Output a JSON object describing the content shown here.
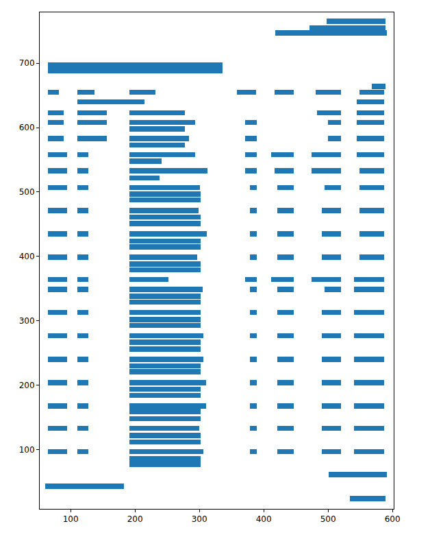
{
  "chart_data": {
    "type": "broken_barh",
    "orientation": "horizontal",
    "color": "#1f77b4",
    "grid": false,
    "xlim": [
      52,
      602
    ],
    "xticks": [
      100,
      200,
      300,
      400,
      500,
      600
    ],
    "ylim": [
      8,
      779
    ],
    "yticks": [
      100,
      200,
      300,
      400,
      500,
      600,
      700
    ],
    "rows": [
      {
        "y": 765,
        "height": 8,
        "spans": [
          [
            498,
            91
          ]
        ]
      },
      {
        "y": 755,
        "height": 8,
        "spans": [
          [
            471,
            118
          ]
        ]
      },
      {
        "y": 747,
        "height": 8,
        "spans": [
          [
            418,
            173
          ]
        ]
      },
      {
        "y": 693,
        "height": 17,
        "spans": [
          [
            65,
            271
          ]
        ]
      },
      {
        "y": 664,
        "height": 8,
        "spans": [
          [
            568,
            21
          ]
        ]
      },
      {
        "y": 655,
        "height": 8,
        "spans": [
          [
            65,
            17
          ],
          [
            110,
            27
          ],
          [
            191,
            41
          ],
          [
            358,
            30
          ],
          [
            417,
            30
          ],
          [
            481,
            39
          ],
          [
            549,
            38
          ]
        ]
      },
      {
        "y": 640,
        "height": 8,
        "spans": [
          [
            110,
            105
          ],
          [
            545,
            42
          ]
        ]
      },
      {
        "y": 623,
        "height": 8,
        "spans": [
          [
            65,
            24
          ],
          [
            110,
            46
          ],
          [
            191,
            86
          ],
          [
            483,
            37
          ],
          [
            545,
            42
          ]
        ]
      },
      {
        "y": 608,
        "height": 8,
        "spans": [
          [
            65,
            24
          ],
          [
            110,
            46
          ],
          [
            191,
            103
          ],
          [
            371,
            18
          ],
          [
            500,
            20
          ],
          [
            545,
            42
          ]
        ]
      },
      {
        "y": 598,
        "height": 8,
        "spans": [
          [
            191,
            86
          ]
        ]
      },
      {
        "y": 583,
        "height": 8,
        "spans": [
          [
            65,
            24
          ],
          [
            110,
            46
          ],
          [
            191,
            93
          ],
          [
            371,
            18
          ],
          [
            500,
            20
          ],
          [
            545,
            42
          ]
        ]
      },
      {
        "y": 573,
        "height": 8,
        "spans": [
          [
            191,
            86
          ]
        ]
      },
      {
        "y": 558,
        "height": 8,
        "spans": [
          [
            65,
            30
          ],
          [
            110,
            18
          ],
          [
            191,
            103
          ],
          [
            371,
            18
          ],
          [
            412,
            35
          ],
          [
            474,
            46
          ],
          [
            545,
            42
          ]
        ]
      },
      {
        "y": 548,
        "height": 8,
        "spans": [
          [
            191,
            50
          ]
        ]
      },
      {
        "y": 533,
        "height": 8,
        "spans": [
          [
            65,
            30
          ],
          [
            110,
            18
          ],
          [
            191,
            122
          ],
          [
            371,
            18
          ],
          [
            417,
            30
          ],
          [
            474,
            46
          ],
          [
            549,
            38
          ]
        ]
      },
      {
        "y": 522,
        "height": 8,
        "spans": [
          [
            191,
            47
          ]
        ]
      },
      {
        "y": 507,
        "height": 8,
        "spans": [
          [
            65,
            30
          ],
          [
            110,
            18
          ],
          [
            191,
            110
          ],
          [
            379,
            10
          ],
          [
            421,
            26
          ],
          [
            495,
            25
          ],
          [
            549,
            38
          ]
        ]
      },
      {
        "y": 497,
        "height": 8,
        "spans": [
          [
            191,
            111
          ]
        ]
      },
      {
        "y": 488,
        "height": 8,
        "spans": [
          [
            191,
            111
          ]
        ]
      },
      {
        "y": 471,
        "height": 8,
        "spans": [
          [
            65,
            30
          ],
          [
            110,
            18
          ],
          [
            191,
            108
          ],
          [
            379,
            10
          ],
          [
            421,
            26
          ],
          [
            490,
            30
          ],
          [
            549,
            38
          ]
        ]
      },
      {
        "y": 461,
        "height": 8,
        "spans": [
          [
            191,
            111
          ]
        ]
      },
      {
        "y": 451,
        "height": 8,
        "spans": [
          [
            191,
            111
          ]
        ]
      },
      {
        "y": 435,
        "height": 8,
        "spans": [
          [
            65,
            30
          ],
          [
            110,
            18
          ],
          [
            191,
            121
          ],
          [
            379,
            10
          ],
          [
            421,
            26
          ],
          [
            490,
            30
          ],
          [
            549,
            38
          ]
        ]
      },
      {
        "y": 424,
        "height": 8,
        "spans": [
          [
            191,
            111
          ]
        ]
      },
      {
        "y": 415,
        "height": 8,
        "spans": [
          [
            191,
            111
          ]
        ]
      },
      {
        "y": 399,
        "height": 8,
        "spans": [
          [
            65,
            30
          ],
          [
            110,
            18
          ],
          [
            191,
            106
          ],
          [
            379,
            10
          ],
          [
            421,
            26
          ],
          [
            490,
            30
          ],
          [
            549,
            38
          ]
        ]
      },
      {
        "y": 388,
        "height": 8,
        "spans": [
          [
            191,
            111
          ]
        ]
      },
      {
        "y": 379,
        "height": 8,
        "spans": [
          [
            191,
            111
          ]
        ]
      },
      {
        "y": 364,
        "height": 8,
        "spans": [
          [
            65,
            30
          ],
          [
            110,
            18
          ],
          [
            191,
            61
          ],
          [
            371,
            18
          ],
          [
            412,
            35
          ],
          [
            474,
            46
          ],
          [
            540,
            47
          ]
        ]
      },
      {
        "y": 349,
        "height": 8,
        "spans": [
          [
            65,
            30
          ],
          [
            110,
            18
          ],
          [
            191,
            114
          ],
          [
            379,
            10
          ],
          [
            421,
            26
          ],
          [
            495,
            25
          ],
          [
            540,
            47
          ]
        ]
      },
      {
        "y": 338,
        "height": 8,
        "spans": [
          [
            191,
            111
          ]
        ]
      },
      {
        "y": 329,
        "height": 8,
        "spans": [
          [
            191,
            111
          ]
        ]
      },
      {
        "y": 313,
        "height": 8,
        "spans": [
          [
            65,
            30
          ],
          [
            110,
            18
          ],
          [
            191,
            111
          ],
          [
            379,
            10
          ],
          [
            421,
            26
          ],
          [
            490,
            30
          ],
          [
            540,
            47
          ]
        ]
      },
      {
        "y": 302,
        "height": 8,
        "spans": [
          [
            191,
            111
          ]
        ]
      },
      {
        "y": 293,
        "height": 8,
        "spans": [
          [
            191,
            111
          ]
        ]
      },
      {
        "y": 277,
        "height": 8,
        "spans": [
          [
            65,
            30
          ],
          [
            110,
            18
          ],
          [
            191,
            115
          ],
          [
            379,
            10
          ],
          [
            421,
            26
          ],
          [
            490,
            30
          ],
          [
            540,
            47
          ]
        ]
      },
      {
        "y": 267,
        "height": 8,
        "spans": [
          [
            191,
            111
          ]
        ]
      },
      {
        "y": 256,
        "height": 8,
        "spans": [
          [
            191,
            111
          ]
        ]
      },
      {
        "y": 240,
        "height": 8,
        "spans": [
          [
            65,
            30
          ],
          [
            110,
            18
          ],
          [
            191,
            115
          ],
          [
            379,
            10
          ],
          [
            421,
            26
          ],
          [
            490,
            30
          ],
          [
            540,
            47
          ]
        ]
      },
      {
        "y": 230,
        "height": 8,
        "spans": [
          [
            191,
            111
          ]
        ]
      },
      {
        "y": 221,
        "height": 8,
        "spans": [
          [
            191,
            111
          ]
        ]
      },
      {
        "y": 204,
        "height": 8,
        "spans": [
          [
            65,
            30
          ],
          [
            110,
            18
          ],
          [
            191,
            119
          ],
          [
            379,
            10
          ],
          [
            421,
            26
          ],
          [
            490,
            30
          ],
          [
            540,
            47
          ]
        ]
      },
      {
        "y": 194,
        "height": 8,
        "spans": [
          [
            191,
            111
          ]
        ]
      },
      {
        "y": 184,
        "height": 8,
        "spans": [
          [
            191,
            111
          ]
        ]
      },
      {
        "y": 168,
        "height": 8,
        "spans": [
          [
            65,
            30
          ],
          [
            110,
            18
          ],
          [
            191,
            119
          ],
          [
            379,
            10
          ],
          [
            421,
            26
          ],
          [
            490,
            30
          ],
          [
            540,
            47
          ]
        ]
      },
      {
        "y": 159,
        "height": 8,
        "spans": [
          [
            191,
            111
          ]
        ]
      },
      {
        "y": 148,
        "height": 8,
        "spans": [
          [
            191,
            111
          ]
        ]
      },
      {
        "y": 133,
        "height": 8,
        "spans": [
          [
            65,
            30
          ],
          [
            110,
            18
          ],
          [
            191,
            109
          ],
          [
            379,
            10
          ],
          [
            421,
            26
          ],
          [
            490,
            30
          ],
          [
            540,
            47
          ]
        ]
      },
      {
        "y": 122,
        "height": 8,
        "spans": [
          [
            191,
            111
          ]
        ]
      },
      {
        "y": 112,
        "height": 8,
        "spans": [
          [
            191,
            111
          ]
        ]
      },
      {
        "y": 97,
        "height": 8,
        "spans": [
          [
            65,
            30
          ],
          [
            110,
            18
          ],
          [
            191,
            115
          ],
          [
            379,
            10
          ],
          [
            421,
            26
          ],
          [
            490,
            30
          ],
          [
            540,
            47
          ]
        ]
      },
      {
        "y": 86,
        "height": 8,
        "spans": [
          [
            191,
            111
          ]
        ]
      },
      {
        "y": 77,
        "height": 8,
        "spans": [
          [
            191,
            111
          ]
        ]
      },
      {
        "y": 61,
        "height": 8,
        "spans": [
          [
            501,
            90
          ]
        ]
      },
      {
        "y": 43,
        "height": 8,
        "spans": [
          [
            61,
            122
          ]
        ]
      },
      {
        "y": 24,
        "height": 8,
        "spans": [
          [
            534,
            55
          ]
        ]
      }
    ]
  }
}
